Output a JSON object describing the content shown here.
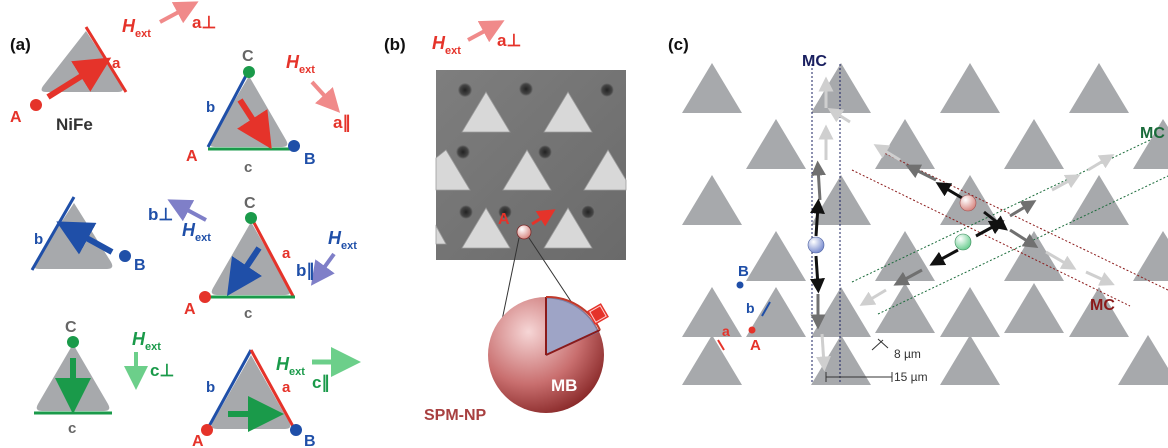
{
  "panel_a": {
    "label": "(a)",
    "material": "NiFe",
    "field_symbol": "H",
    "field_subscript": "ext",
    "vector_a_perp": "a⊥",
    "vector_a_par": "a∥",
    "vector_b_perp": "b⊥",
    "vector_b_par": "b∥",
    "vector_c_perp": "c⊥",
    "vector_c_par": "c∥",
    "vertex_A": "A",
    "vertex_B": "B",
    "vertex_C": "C",
    "edge_a": "a",
    "edge_b": "b",
    "edge_c": "c"
  },
  "panel_b": {
    "label": "(b)",
    "field_symbol": "H",
    "field_subscript": "ext",
    "vector": "a⊥",
    "vertex_A": "A",
    "bead_label": "MB",
    "nanoparticle_label": "SPM-NP"
  },
  "panel_c": {
    "label": "(c)",
    "channel_vertical": "MC",
    "channel_green": "MC",
    "channel_red": "MC",
    "vertex_A": "A",
    "vertex_B": "B",
    "edge_a": "a",
    "edge_b": "b",
    "dim_gap": "8 µm",
    "dim_period": "15 µm"
  },
  "colors": {
    "red": "#e5332a",
    "blue": "#1f4fa8",
    "green": "#1a9a4a",
    "navy": "#1a2060",
    "darkgreen": "#1a6b3a",
    "darkred": "#8b1a1a",
    "triangle": "#a7a9ac"
  }
}
